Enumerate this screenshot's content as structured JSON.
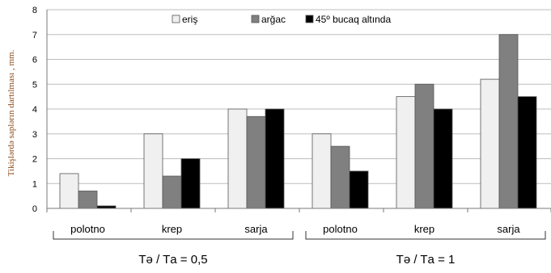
{
  "chart_data": {
    "type": "bar",
    "ylabel": "Tikişlərdə saplərın dartılması , mm.",
    "ylim": [
      0,
      8
    ],
    "yticks": [
      0,
      1,
      2,
      3,
      4,
      5,
      6,
      7,
      8
    ],
    "categories": [
      "polotno",
      "krep",
      "sarja",
      "polotno",
      "krep",
      "sarja"
    ],
    "groups": [
      {
        "label": "Tə / Tа = 0,5",
        "categories": [
          0,
          1,
          2
        ]
      },
      {
        "label": "Tə / Tа = 1",
        "categories": [
          3,
          4,
          5
        ]
      }
    ],
    "series": [
      {
        "name": "eriş",
        "color": "#f0f0f0",
        "values": [
          1.4,
          3.0,
          4.0,
          3.0,
          4.5,
          5.2
        ]
      },
      {
        "name": "arğac",
        "color": "#808080",
        "values": [
          0.7,
          1.3,
          3.7,
          2.5,
          5.0,
          7.0
        ]
      },
      {
        "name": "45º bucaq altında",
        "color": "#000000",
        "values": [
          0.1,
          2.0,
          4.0,
          1.5,
          4.0,
          4.5
        ]
      }
    ],
    "grid": true,
    "legend_position": "top-center"
  }
}
